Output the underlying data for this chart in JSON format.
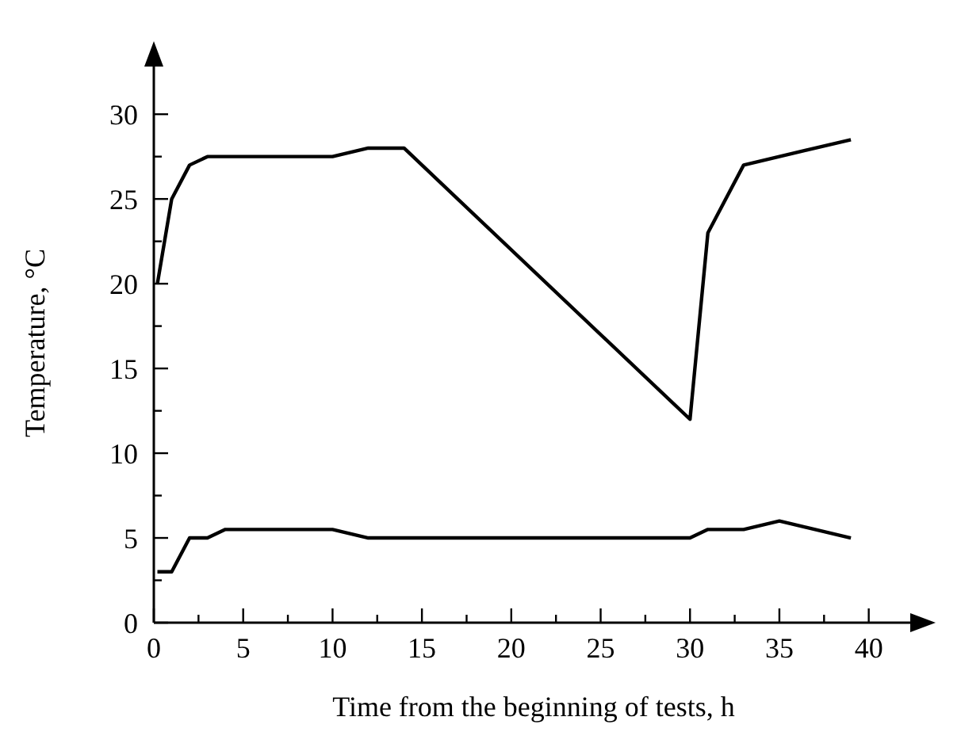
{
  "chart_data": {
    "type": "line",
    "xlabel": "Time from the beginning of tests, h",
    "ylabel": "Temperature, °C",
    "xlim": [
      0,
      42.5
    ],
    "ylim": [
      0,
      33
    ],
    "xticks": [
      0,
      {
        "value": 2.5,
        "label": null
      },
      5,
      {
        "value": 7.5,
        "label": null
      },
      10,
      {
        "value": 12.5,
        "label": null
      },
      15,
      {
        "value": 17.5,
        "label": null
      },
      20,
      {
        "value": 22.5,
        "label": null
      },
      25,
      {
        "value": 27.5,
        "label": null
      },
      30,
      {
        "value": 32.5,
        "label": null
      },
      35,
      {
        "value": 37.5,
        "label": null
      },
      40
    ],
    "yticks": [
      0,
      {
        "value": 2.5,
        "label": null
      },
      5,
      {
        "value": 7.5,
        "label": null
      },
      10,
      {
        "value": 12.5,
        "label": null
      },
      15,
      {
        "value": 17.5,
        "label": null
      },
      20,
      {
        "value": 22.5,
        "label": null
      },
      25,
      {
        "value": 27.5,
        "label": null
      },
      30
    ],
    "grid": false,
    "marker": "none",
    "line_style": "solid",
    "series": [
      {
        "color": "#000000",
        "x": [
          0.2,
          1,
          2,
          3,
          10,
          12,
          14,
          30,
          31,
          33,
          39
        ],
        "values": [
          20,
          25,
          27,
          27.5,
          27.5,
          28,
          28,
          12,
          23,
          27,
          28.5
        ]
      },
      {
        "color": "#000000",
        "x": [
          0.2,
          1,
          2,
          3,
          4,
          10,
          12,
          30,
          31,
          33,
          35,
          39
        ],
        "values": [
          3,
          3,
          5,
          5,
          5.5,
          5.5,
          5,
          5,
          5.5,
          5.5,
          6,
          5
        ]
      }
    ]
  }
}
